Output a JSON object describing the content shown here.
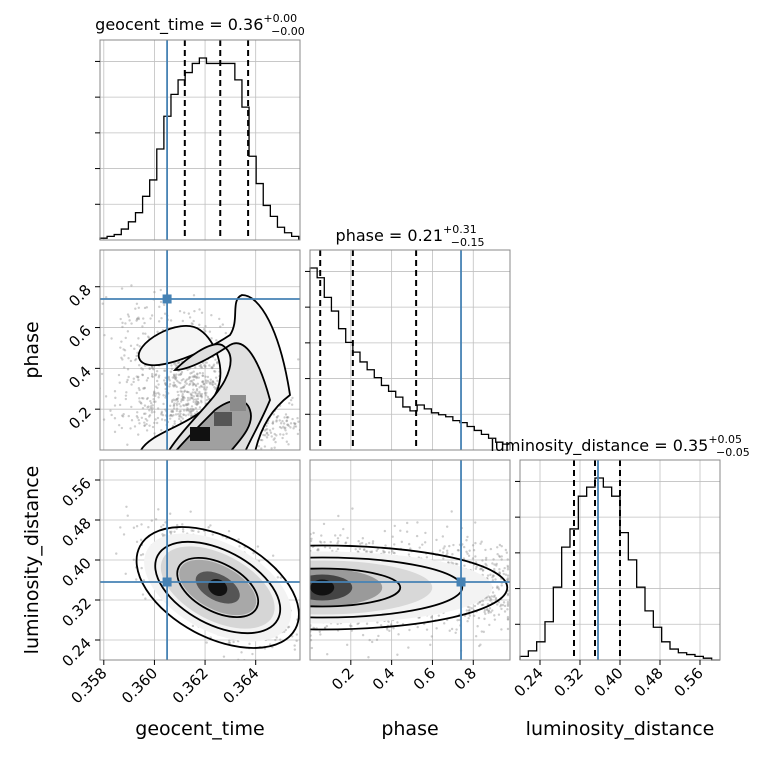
{
  "chart_data": {
    "type": "corner",
    "parameters": [
      "geocent_time",
      "phase",
      "luminosity_distance"
    ],
    "truths": {
      "geocent_time": 0.3605,
      "phase": 0.74,
      "luminosity_distance": 0.356
    },
    "colors": {
      "truth": "#4682b4",
      "hist": "#000000",
      "grid": "#c0c0c0",
      "scatter": "#909090",
      "spine": "#888888"
    },
    "titles": [
      {
        "name": "geocent_time",
        "value": "0.36",
        "plus": "+0.00",
        "minus": "−0.00"
      },
      {
        "name": "phase",
        "value": "0.21",
        "plus": "+0.31",
        "minus": "−0.15"
      },
      {
        "name": "luminosity_distance",
        "value": "0.35",
        "plus": "+0.05",
        "minus": "−0.05"
      }
    ],
    "axis_labels": {
      "x": [
        "geocent_time",
        "phase",
        "luminosity_distance"
      ],
      "y": [
        "phase",
        "luminosity_distance"
      ]
    },
    "ranges": {
      "geocent_time": [
        0.35785,
        0.36575
      ],
      "phase": [
        0.0,
        0.98
      ],
      "luminosity_distance": [
        0.2,
        0.6
      ]
    },
    "ticks": {
      "geocent_time": {
        "values": [
          0.358,
          0.36,
          0.362,
          0.364
        ],
        "labels": [
          "0.358",
          "0.360",
          "0.362",
          "0.364"
        ]
      },
      "phase": {
        "values": [
          0.2,
          0.4,
          0.6,
          0.8
        ],
        "labels": [
          "0.2",
          "0.4",
          "0.6",
          "0.8"
        ]
      },
      "luminosity_distance": {
        "values": [
          0.24,
          0.32,
          0.4,
          0.48,
          0.56
        ],
        "labels": [
          "0.24",
          "0.32",
          "0.40",
          "0.48",
          "0.56"
        ]
      }
    },
    "quantiles": {
      "geocent_time": [
        0.3612,
        0.3626,
        0.3637
      ],
      "phase": [
        0.05,
        0.21,
        0.52
      ],
      "luminosity_distance": [
        0.308,
        0.35,
        0.4
      ]
    },
    "histograms": {
      "geocent_time": {
        "edges": [
          0.35785,
          0.3657
        ],
        "counts": [
          0.01,
          0.02,
          0.03,
          0.06,
          0.1,
          0.15,
          0.24,
          0.33,
          0.5,
          0.68,
          0.8,
          0.88,
          0.92,
          0.97,
          1.0,
          0.97,
          0.97,
          0.97,
          0.97,
          0.88,
          0.73,
          0.46,
          0.31,
          0.19,
          0.13,
          0.07,
          0.04,
          0.02
        ]
      },
      "phase": {
        "edges": [
          0.0,
          0.98
        ],
        "counts": [
          0.93,
          0.88,
          0.78,
          0.71,
          0.62,
          0.55,
          0.5,
          0.45,
          0.41,
          0.37,
          0.33,
          0.3,
          0.27,
          0.22,
          0.2,
          0.23,
          0.21,
          0.19,
          0.18,
          0.17,
          0.15,
          0.14,
          0.12,
          0.1,
          0.08,
          0.06,
          0.04,
          0.03
        ]
      },
      "luminosity_distance": {
        "edges": [
          0.2,
          0.6
        ],
        "counts": [
          0.02,
          0.05,
          0.1,
          0.21,
          0.4,
          0.62,
          0.72,
          0.9,
          0.95,
          1.0,
          0.95,
          0.9,
          0.7,
          0.55,
          0.4,
          0.27,
          0.18,
          0.1,
          0.06,
          0.04,
          0.03,
          0.02,
          0.01,
          0.0
        ]
      }
    }
  }
}
